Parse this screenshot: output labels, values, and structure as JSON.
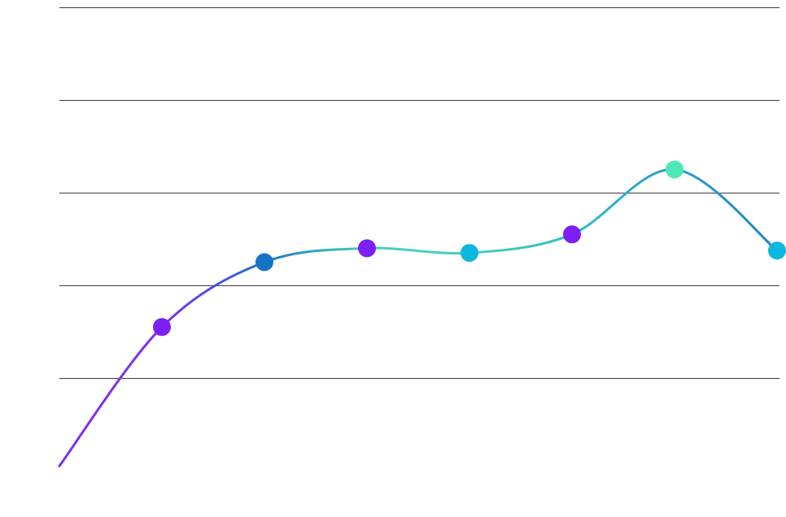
{
  "chart_data": {
    "type": "line",
    "title": "",
    "xlabel": "",
    "ylabel": "",
    "smooth": true,
    "grid": "horizontal",
    "legend": "none",
    "ylim": [
      0,
      100
    ],
    "yticks": [
      20,
      40,
      60,
      80,
      100
    ],
    "x": [
      0,
      1,
      2,
      3,
      4,
      5,
      6,
      7
    ],
    "series": [
      {
        "values": [
          1,
          31,
          45,
          48,
          47,
          51,
          65,
          47.5
        ],
        "line_gradient": [
          "#7b2ff7",
          "#7b2ff7",
          "#1b75c9",
          "#45d0be",
          "#45d0be",
          "#2fbfc6",
          "#2a9ccf",
          "#1e84c2"
        ],
        "marker_colors": [
          null,
          "#7b1ff5",
          "#1473c7",
          "#7b1ff5",
          "#0cb7dd",
          "#7b1ff5",
          "#4ee8b4",
          "#0cb7dd"
        ],
        "marker_shown": [
          false,
          true,
          true,
          true,
          true,
          true,
          true,
          true
        ]
      }
    ]
  }
}
